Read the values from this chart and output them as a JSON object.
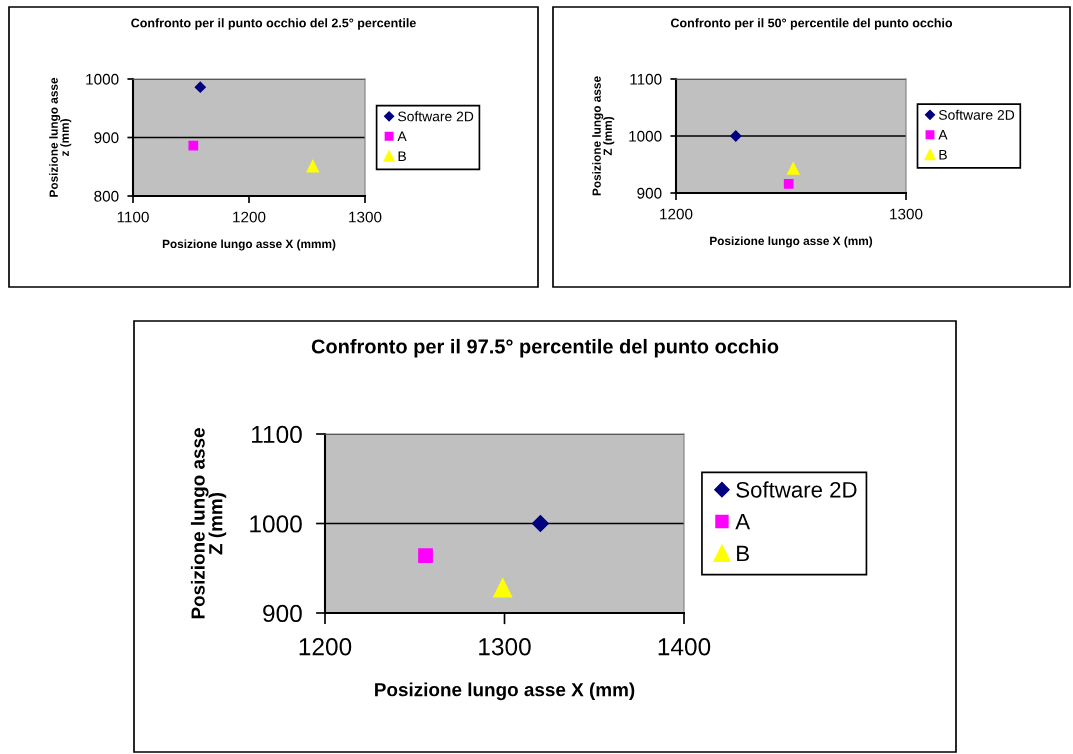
{
  "chart_data": [
    {
      "type": "scatter",
      "title": "Confronto per il punto occhio del 2.5° percentile",
      "xlabel": "Posizione lungo asse X (mmm)",
      "ylabel": "Posizione lungo asse\nz (mm)",
      "xlim": [
        1100,
        1300
      ],
      "xticks": [
        1100,
        1200,
        1300
      ],
      "ylim": [
        800,
        1000
      ],
      "yticks": [
        800,
        900,
        1000
      ],
      "grid": "y",
      "legend": "right",
      "series": [
        {
          "name": "Software 2D",
          "color": "#000080",
          "marker": "diamond",
          "x": [
            1158
          ],
          "values": [
            986
          ]
        },
        {
          "name": "A",
          "color": "#ff00ff",
          "marker": "square",
          "x": [
            1152
          ],
          "values": [
            886
          ]
        },
        {
          "name": "B",
          "color": "#ffff00",
          "marker": "triangle",
          "x": [
            1255
          ],
          "values": [
            851
          ]
        }
      ]
    },
    {
      "type": "scatter",
      "title": "Confronto per il 50° percentile del punto occhio",
      "xlabel": "Posizione lungo asse X (mm)",
      "ylabel": "Posizione lungo asse\nZ (mm)",
      "xlim": [
        1200,
        1300
      ],
      "xticks": [
        1200,
        1300
      ],
      "ylim": [
        900,
        1100
      ],
      "yticks": [
        900,
        1000,
        1100
      ],
      "grid": "y",
      "legend": "right",
      "series": [
        {
          "name": "Software 2D",
          "color": "#000080",
          "marker": "diamond",
          "x": [
            1226
          ],
          "values": [
            1000
          ]
        },
        {
          "name": "A",
          "color": "#ff00ff",
          "marker": "square",
          "x": [
            1249
          ],
          "values": [
            916
          ]
        },
        {
          "name": "B",
          "color": "#ffff00",
          "marker": "triangle",
          "x": [
            1251
          ],
          "values": [
            943
          ]
        }
      ]
    },
    {
      "type": "scatter",
      "title": "Confronto per il 97.5° percentile del punto occhio",
      "xlabel": "Posizione lungo asse X (mm)",
      "ylabel": "Posizione lungo asse\nZ (mm)",
      "xlim": [
        1200,
        1400
      ],
      "xticks": [
        1200,
        1300,
        1400
      ],
      "ylim": [
        900,
        1100
      ],
      "yticks": [
        900,
        1000,
        1100
      ],
      "grid": "y",
      "legend": "right",
      "series": [
        {
          "name": "Software 2D",
          "color": "#000080",
          "marker": "diamond",
          "x": [
            1320
          ],
          "values": [
            1000
          ]
        },
        {
          "name": "A",
          "color": "#ff00ff",
          "marker": "square",
          "x": [
            1256
          ],
          "values": [
            964
          ]
        },
        {
          "name": "B",
          "color": "#ffff00",
          "marker": "triangle",
          "x": [
            1299
          ],
          "values": [
            928
          ]
        }
      ]
    }
  ]
}
